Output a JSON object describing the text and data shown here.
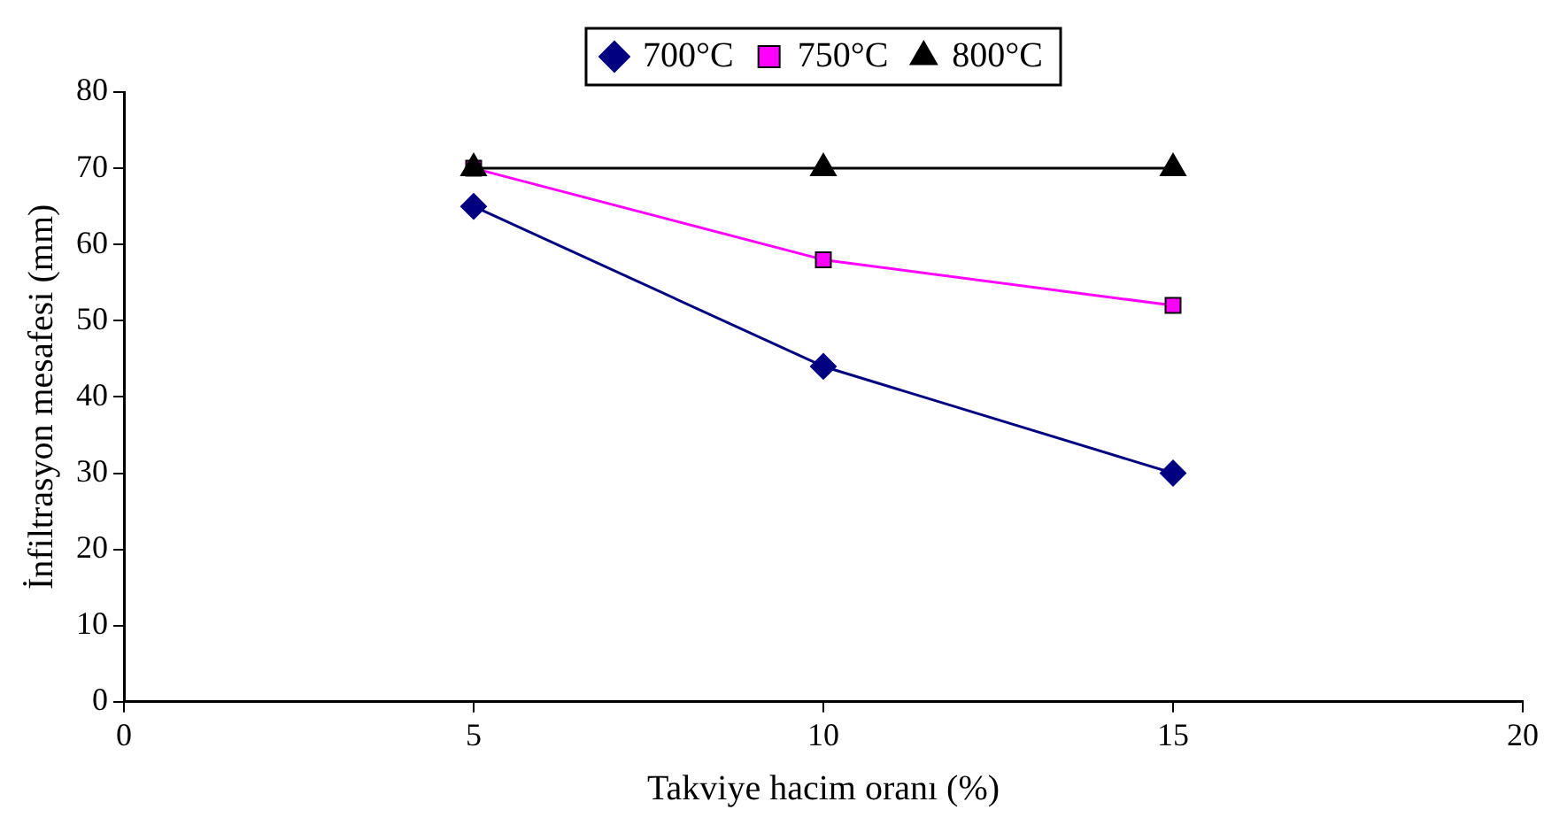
{
  "chart_data": {
    "type": "line",
    "xlabel": "Takviye hacim oranı (%)",
    "ylabel": "İnfiltrasyon mesafesi (mm)",
    "x": [
      5,
      10,
      15
    ],
    "series": [
      {
        "name": "700°C",
        "color": "#000080",
        "marker": "diamond",
        "values": [
          65,
          44,
          30
        ]
      },
      {
        "name": "750°C",
        "color": "#ff00ff",
        "marker": "square",
        "values": [
          70,
          58,
          52
        ]
      },
      {
        "name": "800°C",
        "color": "#000000",
        "marker": "triangle",
        "values": [
          70,
          70,
          70
        ]
      }
    ],
    "xlim": [
      0,
      20
    ],
    "xticks": [
      0,
      5,
      10,
      15,
      20
    ],
    "ylim": [
      0,
      80
    ],
    "yticks": [
      0,
      10,
      20,
      30,
      40,
      50,
      60,
      70,
      80
    ],
    "grid": false,
    "legend": "top",
    "line_style": "solid"
  }
}
